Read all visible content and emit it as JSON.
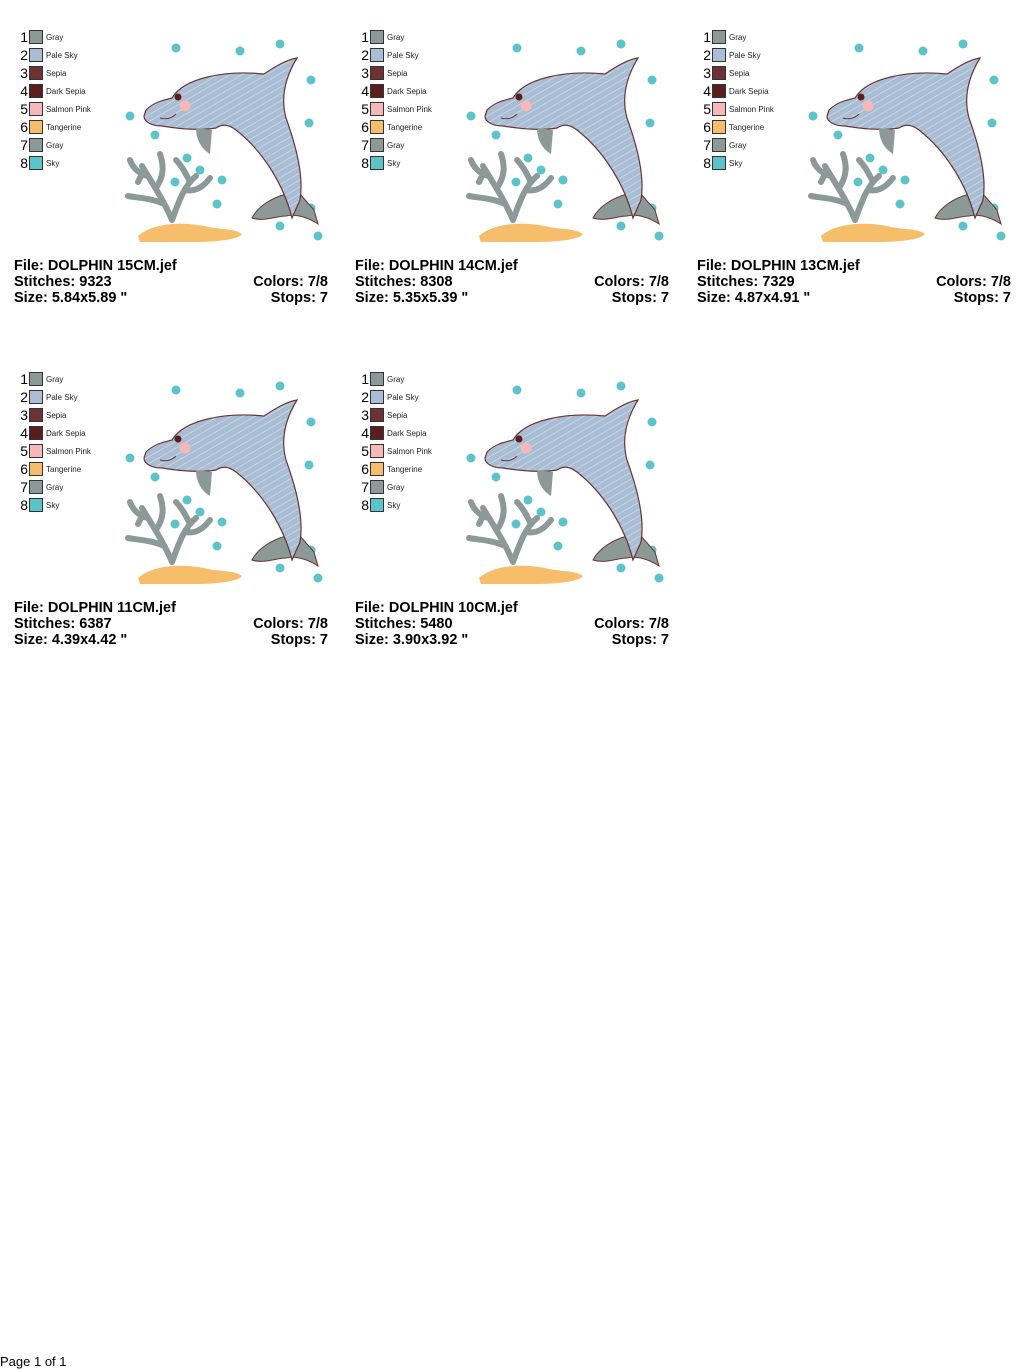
{
  "thread_colors": [
    {
      "num": "1",
      "name": "Gray",
      "hex": "#8c9a97"
    },
    {
      "num": "2",
      "name": "Pale Sky",
      "hex": "#a9bed4"
    },
    {
      "num": "3",
      "name": "Sepia",
      "hex": "#6b3333"
    },
    {
      "num": "4",
      "name": "Dark Sepia",
      "hex": "#5a1e1e"
    },
    {
      "num": "5",
      "name": "Salmon Pink",
      "hex": "#f7b8b8"
    },
    {
      "num": "6",
      "name": "Tangerine",
      "hex": "#f6bd6a"
    },
    {
      "num": "7",
      "name": "Gray",
      "hex": "#8c9a97"
    },
    {
      "num": "8",
      "name": "Sky",
      "hex": "#5cc4c8"
    }
  ],
  "designs": [
    {
      "file": "File: DOLPHIN 15CM.jef",
      "stitches": "Stitches: 9323",
      "size": "Size: 5.84x5.89 \"",
      "colors": "Colors: 7/8",
      "stops": "Stops: 7"
    },
    {
      "file": "File: DOLPHIN 14CM.jef",
      "stitches": "Stitches: 8308",
      "size": "Size: 5.35x5.39 \"",
      "colors": "Colors: 7/8",
      "stops": "Stops: 7"
    },
    {
      "file": "File: DOLPHIN 13CM.jef",
      "stitches": "Stitches: 7329",
      "size": "Size: 4.87x4.91 \"",
      "colors": "Colors: 7/8",
      "stops": "Stops: 7"
    },
    {
      "file": "File: DOLPHIN 11CM.jef",
      "stitches": "Stitches: 6387",
      "size": "Size: 4.39x4.42 \"",
      "colors": "Colors: 7/8",
      "stops": "Stops: 7"
    },
    {
      "file": "File: DOLPHIN 10CM.jef",
      "stitches": "Stitches: 5480",
      "size": "Size: 3.90x3.92 \"",
      "colors": "Colors: 7/8",
      "stops": "Stops: 7"
    }
  ],
  "footer": "Page 1 of 1"
}
